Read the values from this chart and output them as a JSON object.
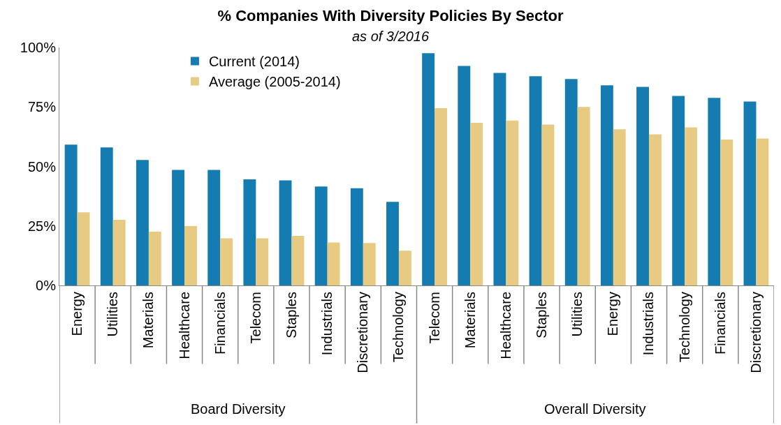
{
  "chart_data": {
    "type": "bar",
    "title": "% Companies With Diversity Policies By Sector",
    "subtitle": "as of 3/2016",
    "categories": [
      "Energy",
      "Utilities",
      "Materials",
      "Healthcare",
      "Financials",
      "Telecom",
      "Staples",
      "Industrials",
      "Discretionary",
      "Technology",
      "Telecom",
      "Materials",
      "Healthcare",
      "Staples",
      "Utilities",
      "Energy",
      "Industrials",
      "Technology",
      "Financials",
      "Discretionary"
    ],
    "series": [
      {
        "name": "Current (2014)",
        "color": "#147cb0",
        "values": [
          59.2,
          58.0,
          52.7,
          48.5,
          48.5,
          44.6,
          44.1,
          41.6,
          40.8,
          35.1,
          97.6,
          92.2,
          89.3,
          87.9,
          86.7,
          84.1,
          83.4,
          79.6,
          78.8,
          77.3
        ]
      },
      {
        "name": "Average (2005-2014)",
        "color": "#e8cb82",
        "values": [
          30.7,
          27.6,
          22.6,
          25.0,
          19.8,
          19.8,
          20.8,
          18.0,
          17.8,
          14.6,
          74.5,
          68.3,
          69.3,
          67.6,
          75.0,
          65.6,
          63.5,
          66.4,
          61.3,
          61.7
        ]
      }
    ],
    "annotations": [
      "Board Diversity",
      "Overall Diversity"
    ],
    "ylim": [
      0,
      100
    ],
    "yticks": [
      {
        "value": 0,
        "label": "0%"
      },
      {
        "value": 25,
        "label": "25%"
      },
      {
        "value": 50,
        "label": "50%"
      },
      {
        "value": 75,
        "label": "75%"
      },
      {
        "value": 100,
        "label": "100%"
      }
    ],
    "legend": "top left"
  }
}
